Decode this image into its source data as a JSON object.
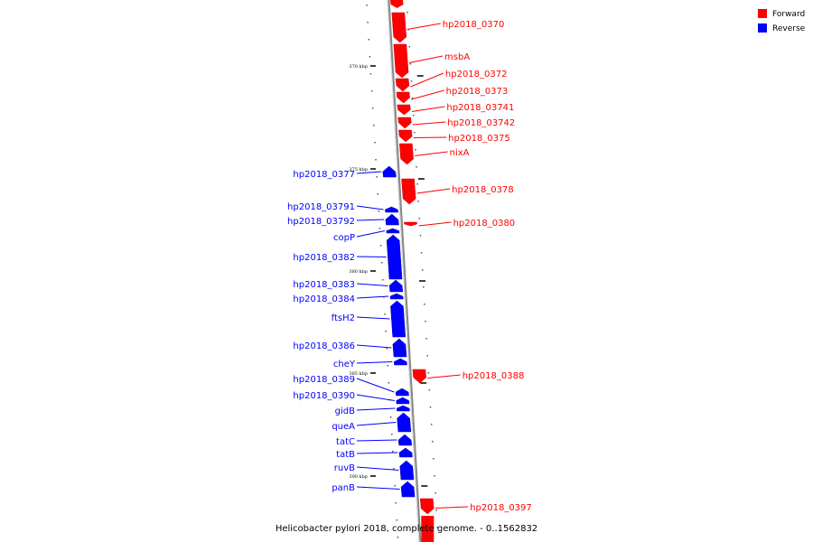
{
  "caption": "Helicobacter pylori 2018, complete genome. - 0..1562832",
  "legend": [
    {
      "label": "Forward",
      "color": "#ff0000"
    },
    {
      "label": "Reverse",
      "color": "#0000ff"
    }
  ],
  "colors": {
    "forward": "#ff0000",
    "reverse": "#0000ff",
    "backbone": "#888888"
  },
  "ticks": [
    "370 kbp",
    "375 kbp",
    "380 kbp",
    "385 kbp",
    "390 kbp"
  ],
  "forward_genes": [
    "hp2018_0370",
    "msbA",
    "hp2018_0372",
    "hp2018_0373",
    "hp2018_03741",
    "hp2018_03742",
    "hp2018_0375",
    "nixA",
    "hp2018_0378",
    "hp2018_0380",
    "hp2018_0388",
    "hp2018_0397"
  ],
  "reverse_genes": [
    "hp2018_0377",
    "hp2018_03791",
    "hp2018_03792",
    "copP",
    "hp2018_0382",
    "hp2018_0383",
    "hp2018_0384",
    "ftsH2",
    "hp2018_0386",
    "cheY",
    "hp2018_0389",
    "hp2018_0390",
    "gidB",
    "queA",
    "tatC",
    "tatB",
    "ruvB",
    "panB"
  ]
}
